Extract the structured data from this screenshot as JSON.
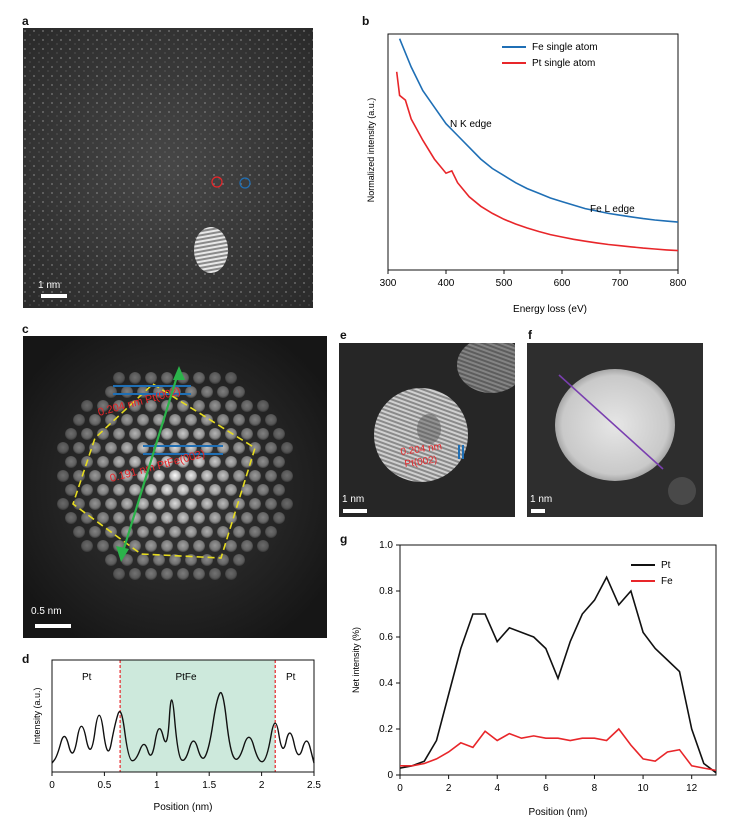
{
  "panels": {
    "a": {
      "letter": "a",
      "scalebar": "1 nm"
    },
    "b": {
      "letter": "b"
    },
    "c": {
      "letter": "c",
      "scalebar": "0.5 nm",
      "label1": "0.204 nm Pt(002)",
      "label2": "0.191 nm PtFe(002)"
    },
    "d": {
      "letter": "d",
      "region_left": "Pt",
      "region_mid": "PtFe",
      "region_right": "Pt"
    },
    "e": {
      "letter": "e",
      "scalebar": "1 nm",
      "label_line1": "0.204 nm",
      "label_line2": "Pt(002)"
    },
    "f": {
      "letter": "f",
      "scalebar": "1 nm"
    },
    "g": {
      "letter": "g"
    }
  },
  "colors": {
    "blue": "#1f6fb5",
    "red": "#e8262a",
    "black": "#111111",
    "green": "#2bb34a",
    "purple": "#7a3fb0",
    "yellow": "#e6dc20",
    "region": "#cde9dc"
  },
  "chart_data": [
    {
      "id": "b",
      "type": "line",
      "xlabel": "Energy loss (eV)",
      "ylabel": "Normalized intensity (a.u.)",
      "xlim": [
        300,
        800
      ],
      "xticks": [
        300,
        400,
        500,
        600,
        700,
        800
      ],
      "legend": [
        "Fe single atom",
        "Pt  single atom"
      ],
      "annotations": [
        "N K edge",
        "Fe L edge"
      ],
      "series": [
        {
          "name": "Fe single atom",
          "x": [
            320,
            340,
            360,
            380,
            400,
            420,
            440,
            460,
            480,
            500,
            520,
            540,
            560,
            580,
            600,
            620,
            640,
            660,
            680,
            700,
            720,
            740,
            760,
            780,
            800
          ],
          "y": [
            0.98,
            0.86,
            0.76,
            0.69,
            0.62,
            0.57,
            0.52,
            0.47,
            0.43,
            0.4,
            0.37,
            0.345,
            0.325,
            0.305,
            0.29,
            0.275,
            0.26,
            0.25,
            0.24,
            0.232,
            0.225,
            0.218,
            0.212,
            0.207,
            0.203
          ]
        },
        {
          "name": "Pt  single atom",
          "x": [
            315,
            320,
            330,
            340,
            360,
            380,
            400,
            410,
            420,
            440,
            460,
            480,
            500,
            520,
            540,
            560,
            580,
            600,
            620,
            640,
            660,
            680,
            700,
            720,
            740,
            760,
            780,
            800
          ],
          "y": [
            0.84,
            0.74,
            0.72,
            0.64,
            0.55,
            0.47,
            0.41,
            0.42,
            0.37,
            0.31,
            0.27,
            0.24,
            0.215,
            0.195,
            0.178,
            0.163,
            0.15,
            0.14,
            0.13,
            0.122,
            0.115,
            0.108,
            0.103,
            0.098,
            0.093,
            0.089,
            0.085,
            0.082
          ]
        }
      ]
    },
    {
      "id": "d",
      "type": "line",
      "xlabel": "Position (nm)",
      "ylabel": "Intensity (a.u.)",
      "xlim": [
        0,
        2.5
      ],
      "xticks": [
        0,
        0.5,
        1,
        1.5,
        2,
        2.5
      ],
      "region": [
        0.65,
        2.13
      ],
      "series": [
        {
          "name": "Intensity",
          "x": [
            0,
            0.05,
            0.12,
            0.2,
            0.28,
            0.37,
            0.45,
            0.53,
            0.6,
            0.66,
            0.73,
            0.8,
            0.88,
            0.95,
            1.02,
            1.1,
            1.14,
            1.2,
            1.27,
            1.35,
            1.43,
            1.5,
            1.57,
            1.63,
            1.7,
            1.78,
            1.88,
            1.97,
            2.05,
            2.13,
            2.2,
            2.27,
            2.35,
            2.43,
            2.5
          ],
          "y": [
            0.05,
            0.12,
            0.4,
            0.05,
            0.55,
            0.05,
            0.7,
            0.05,
            0.45,
            0.65,
            0.08,
            0.07,
            0.3,
            0.05,
            0.5,
            0.15,
            0.88,
            0.12,
            0.05,
            0.35,
            0.05,
            0.2,
            0.7,
            0.82,
            0.15,
            0.05,
            0.4,
            0.05,
            0.08,
            0.58,
            0.1,
            0.45,
            0.05,
            0.35,
            0.05
          ]
        }
      ]
    },
    {
      "id": "g",
      "type": "line",
      "xlabel": "Position (nm)",
      "ylabel": "Net intensity (%)",
      "xlim": [
        0,
        13
      ],
      "ylim": [
        0,
        1.0
      ],
      "xticks": [
        0,
        2,
        4,
        6,
        8,
        10,
        12
      ],
      "yticks": [
        0,
        0.2,
        0.4,
        0.6,
        0.8,
        1.0
      ],
      "series": [
        {
          "name": "Pt",
          "x": [
            0,
            0.5,
            1,
            1.5,
            2,
            2.5,
            3,
            3.5,
            4,
            4.5,
            5,
            5.5,
            6,
            6.5,
            7,
            7.5,
            8,
            8.5,
            9,
            9.5,
            10,
            10.5,
            11,
            11.5,
            12,
            12.5,
            13
          ],
          "y": [
            0.03,
            0.04,
            0.06,
            0.15,
            0.35,
            0.55,
            0.7,
            0.7,
            0.58,
            0.64,
            0.62,
            0.6,
            0.55,
            0.42,
            0.58,
            0.7,
            0.76,
            0.86,
            0.74,
            0.8,
            0.62,
            0.55,
            0.5,
            0.45,
            0.2,
            0.05,
            0.01
          ]
        },
        {
          "name": "Fe",
          "x": [
            0,
            0.5,
            1,
            1.5,
            2,
            2.5,
            3,
            3.5,
            4,
            4.5,
            5,
            5.5,
            6,
            6.5,
            7,
            7.5,
            8,
            8.5,
            9,
            9.5,
            10,
            10.5,
            11,
            11.5,
            12,
            12.5,
            13
          ],
          "y": [
            0.04,
            0.04,
            0.05,
            0.07,
            0.1,
            0.14,
            0.12,
            0.19,
            0.15,
            0.18,
            0.16,
            0.17,
            0.16,
            0.16,
            0.15,
            0.16,
            0.16,
            0.15,
            0.2,
            0.13,
            0.07,
            0.06,
            0.1,
            0.11,
            0.04,
            0.03,
            0.02
          ]
        }
      ]
    }
  ]
}
